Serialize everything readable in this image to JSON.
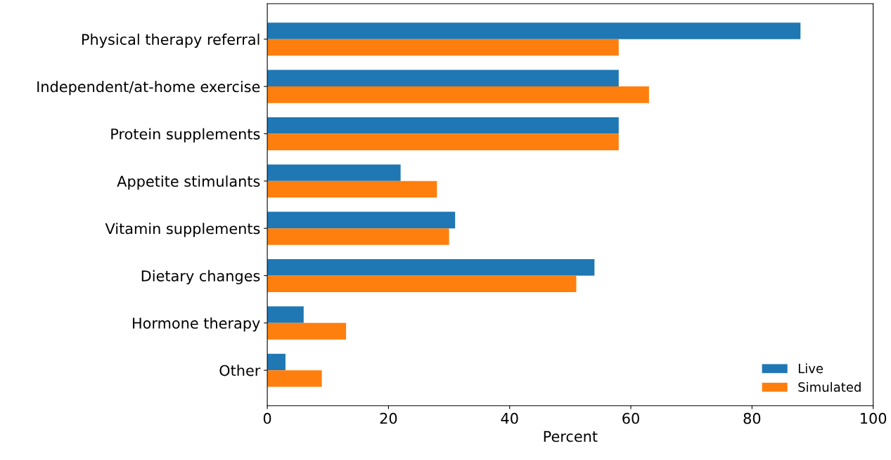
{
  "chart_data": {
    "type": "bar",
    "orientation": "horizontal",
    "xlabel": "Percent",
    "categories": [
      "Physical therapy referral",
      "Independent/at-home exercise",
      "Protein supplements",
      "Appetite stimulants",
      "Vitamin supplements",
      "Dietary changes",
      "Hormone therapy",
      "Other"
    ],
    "series": [
      {
        "name": "Live",
        "color": "#1f77b4",
        "values": [
          88,
          58,
          58,
          22,
          31,
          54,
          6,
          3
        ]
      },
      {
        "name": "Simulated",
        "color": "#ff7f0e",
        "values": [
          58,
          63,
          58,
          28,
          30,
          51,
          13,
          9
        ]
      }
    ],
    "xlim": [
      0,
      100
    ],
    "xticks": [
      0,
      20,
      40,
      60,
      80,
      100
    ],
    "grid": false,
    "legend": "bottom right"
  }
}
